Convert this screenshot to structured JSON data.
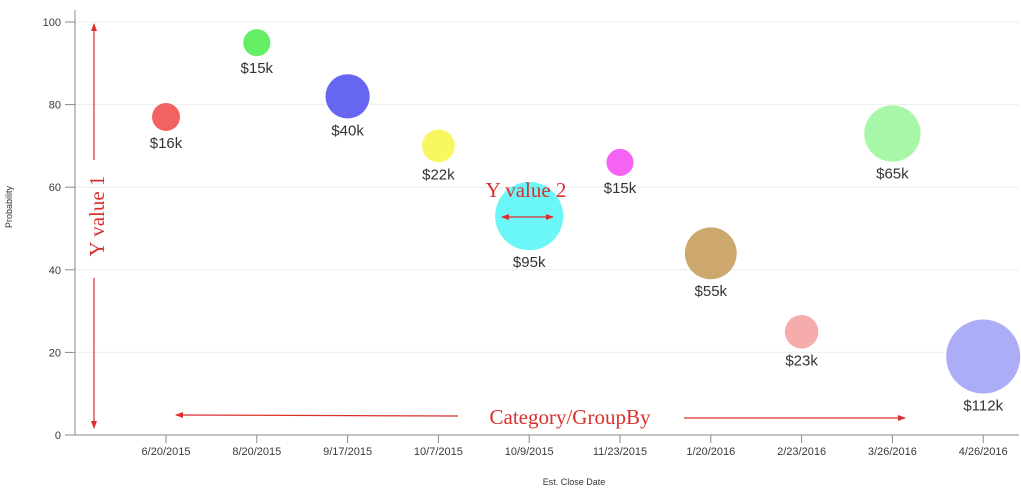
{
  "chart_data": {
    "type": "scatter",
    "variant": "bubble",
    "xlabel": "Est. Close Date",
    "ylabel": "Probability",
    "ylim": [
      0,
      100
    ],
    "yticks": [
      0,
      20,
      40,
      60,
      80,
      100
    ],
    "grid": "horizontal",
    "legend": "none",
    "categories": [
      "6/20/2015",
      "8/20/2015",
      "9/17/2015",
      "10/7/2015",
      "10/9/2015",
      "11/23/2015",
      "1/20/2016",
      "2/23/2016",
      "3/26/2016",
      "4/26/2016"
    ],
    "points": [
      {
        "x": "6/20/2015",
        "y": 77,
        "size": 16,
        "label": "$16k",
        "color": "#f25a5a"
      },
      {
        "x": "8/20/2015",
        "y": 95,
        "size": 15,
        "label": "$15k",
        "color": "#5ced5c"
      },
      {
        "x": "9/17/2015",
        "y": 82,
        "size": 40,
        "label": "$40k",
        "color": "#5e5ef0"
      },
      {
        "x": "10/7/2015",
        "y": 70,
        "size": 22,
        "label": "$22k",
        "color": "#f7f75a"
      },
      {
        "x": "10/9/2015",
        "y": 53,
        "size": 95,
        "label": "$95k",
        "color": "#63f7f7"
      },
      {
        "x": "11/23/2015",
        "y": 66,
        "size": 15,
        "label": "$15k",
        "color": "#f55cf5"
      },
      {
        "x": "1/20/2016",
        "y": 44,
        "size": 55,
        "label": "$55k",
        "color": "#c9a366"
      },
      {
        "x": "2/23/2016",
        "y": 25,
        "size": 23,
        "label": "$23k",
        "color": "#f7a8a8"
      },
      {
        "x": "3/26/2016",
        "y": 73,
        "size": 65,
        "label": "$65k",
        "color": "#a3f7a3"
      },
      {
        "x": "4/26/2016",
        "y": 19,
        "size": 112,
        "label": "$112k",
        "color": "#a8a8f7"
      }
    ],
    "annotations": {
      "y1": "Y value 1",
      "y2": "Y value 2",
      "category": "Category/GroupBy",
      "color": "#d9302c"
    }
  }
}
